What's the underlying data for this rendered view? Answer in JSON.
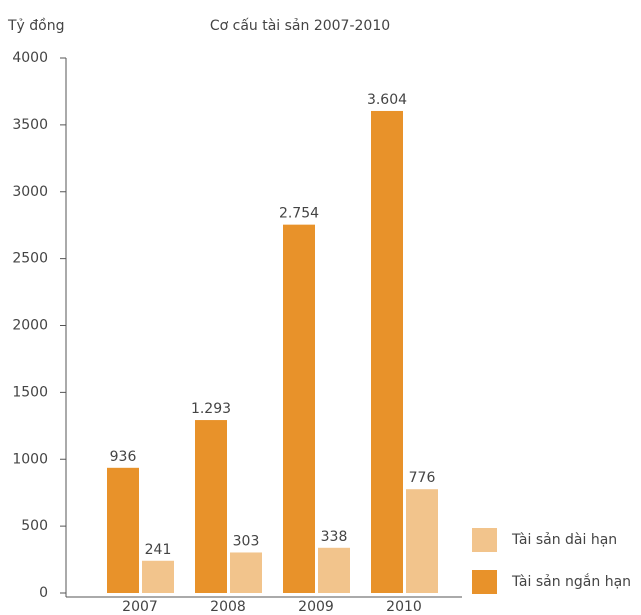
{
  "chart_data": {
    "type": "bar",
    "title": "Cơ cấu tài sản 2007-2010",
    "y_label": "Tỷ đồng",
    "categories": [
      "2007",
      "2008",
      "2009",
      "2010"
    ],
    "series": [
      {
        "name": "Tài sản ngắn hạn",
        "color": "#e8922a",
        "values": [
          936,
          1293,
          2754,
          3604
        ],
        "value_labels": [
          "936",
          "1.293",
          "2.754",
          "3.604"
        ]
      },
      {
        "name": "Tài sản dài hạn",
        "color": "#f2c48c",
        "values": [
          241,
          303,
          338,
          776
        ],
        "value_labels": [
          "241",
          "303",
          "338",
          "776"
        ]
      }
    ],
    "ylim": [
      0,
      4000
    ],
    "yticks": [
      0,
      500,
      1000,
      1500,
      2000,
      2500,
      3000,
      3500,
      4000
    ],
    "legend": "lower right"
  }
}
